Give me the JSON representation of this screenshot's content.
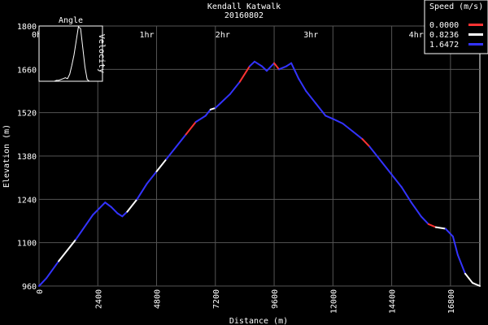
{
  "chart_data": {
    "type": "line",
    "title": "Kendall Katwalk",
    "subtitle": "20160802",
    "xlabel": "Distance (m)",
    "ylabel": "Elevation (m)",
    "xlim": [
      0,
      18000
    ],
    "ylim": [
      960,
      1800
    ],
    "x_ticks": [
      "0",
      "2400",
      "4800",
      "7200",
      "9600",
      "12000",
      "14400",
      "16800"
    ],
    "y_ticks": [
      "960",
      "1100",
      "1240",
      "1380",
      "1520",
      "1660",
      "1800"
    ],
    "time_ticks": [
      "0hr",
      "1hr",
      "2hr",
      "3hr",
      "4hr"
    ],
    "time_tick_distances": [
      0,
      4400,
      7500,
      11100,
      15400
    ],
    "grid": true,
    "legend": {
      "title": "Speed (m/s)",
      "placement": "top-right",
      "entries": [
        {
          "label": "0.0000",
          "color": "#ff3333"
        },
        {
          "label": "0.8236",
          "color": "#ffffff"
        },
        {
          "label": "1.6472",
          "color": "#3333ff"
        }
      ]
    },
    "inset": {
      "title": "Angle",
      "right_label": "Velocity",
      "values": [
        0,
        0,
        0,
        0,
        0,
        0,
        0,
        0,
        1,
        1,
        2,
        3,
        4,
        3,
        8,
        18,
        30,
        46,
        62,
        60,
        38,
        16,
        2,
        0,
        0,
        0,
        0,
        0,
        0,
        0
      ]
    },
    "series": [
      {
        "x": [
          0,
          300,
          800,
          1500,
          2200,
          2700,
          2950,
          3200,
          3400,
          3600,
          4000,
          4400,
          4800,
          5200,
          5600,
          6000,
          6400,
          6800,
          7000,
          7200,
          7400,
          7800,
          8200,
          8600,
          8800,
          9100,
          9300,
          9600,
          9800,
          10100,
          10300,
          10600,
          10900,
          11300,
          11700,
          12000,
          12400,
          12800,
          13200,
          13500,
          13700,
          14000,
          14400,
          14800,
          15200,
          15600,
          15900,
          16200,
          16600,
          16900,
          17100,
          17400,
          17700,
          18000
        ],
        "y": [
          960,
          985,
          1040,
          1110,
          1190,
          1230,
          1215,
          1195,
          1185,
          1200,
          1240,
          1290,
          1330,
          1370,
          1410,
          1450,
          1490,
          1510,
          1530,
          1535,
          1550,
          1580,
          1620,
          1670,
          1685,
          1670,
          1655,
          1680,
          1660,
          1670,
          1680,
          1630,
          1590,
          1550,
          1510,
          1500,
          1485,
          1460,
          1435,
          1410,
          1390,
          1360,
          1320,
          1280,
          1230,
          1185,
          1160,
          1150,
          1145,
          1120,
          1060,
          1000,
          970,
          960
        ],
        "speed_color": [
          "#3333ff",
          "#3333ff",
          "#ffffff",
          "#3333ff",
          "#3333ff",
          "#3333ff",
          "#3333ff",
          "#3333ff",
          "#3333ff",
          "#ffffff",
          "#3333ff",
          "#3333ff",
          "#ffffff",
          "#3333ff",
          "#3333ff",
          "#ff3333",
          "#3333ff",
          "#3333ff",
          "#ffffff",
          "#3333ff",
          "#3333ff",
          "#3333ff",
          "#ff3333",
          "#3333ff",
          "#3333ff",
          "#3333ff",
          "#3333ff",
          "#ff3333",
          "#3333ff",
          "#3333ff",
          "#3333ff",
          "#3333ff",
          "#3333ff",
          "#3333ff",
          "#3333ff",
          "#3333ff",
          "#3333ff",
          "#3333ff",
          "#ff3333",
          "#3333ff",
          "#3333ff",
          "#3333ff",
          "#3333ff",
          "#3333ff",
          "#3333ff",
          "#3333ff",
          "#ff3333",
          "#ffffff",
          "#3333ff",
          "#3333ff",
          "#3333ff",
          "#ffffff",
          "#ffffff",
          "#3333ff"
        ]
      }
    ]
  }
}
